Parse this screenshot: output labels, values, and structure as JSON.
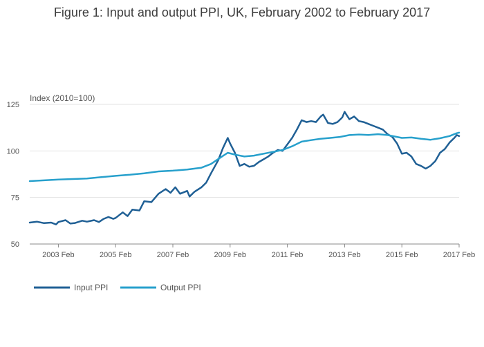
{
  "chart_data": {
    "type": "line",
    "title": "Figure 1: Input and output PPI, UK, February 2002 to February 2017",
    "ylabel": "Index (2010=100)",
    "xlabel": "",
    "ylim": [
      50,
      125
    ],
    "yticks": [
      50,
      75,
      100,
      125
    ],
    "xlim": [
      "2002-02",
      "2017-02"
    ],
    "xticks": [
      {
        "date": "2003-02",
        "label": "2003 Feb"
      },
      {
        "date": "2005-02",
        "label": "2005 Feb"
      },
      {
        "date": "2007-02",
        "label": "2007 Feb"
      },
      {
        "date": "2009-02",
        "label": "2009 Feb"
      },
      {
        "date": "2011-02",
        "label": "2011 Feb"
      },
      {
        "date": "2013-02",
        "label": "2013 Feb"
      },
      {
        "date": "2015-02",
        "label": "2015 Feb"
      },
      {
        "date": "2017-02",
        "label": "2017 Feb"
      }
    ],
    "grid": "horizontal",
    "legend_position": "bottom-left",
    "series": [
      {
        "name": "Input PPI",
        "color": "#206095",
        "points": [
          [
            "2002-02",
            61.5
          ],
          [
            "2002-05",
            62.0
          ],
          [
            "2002-08",
            61.2
          ],
          [
            "2002-11",
            61.5
          ],
          [
            "2003-01",
            60.5
          ],
          [
            "2003-02",
            61.8
          ],
          [
            "2003-05",
            62.8
          ],
          [
            "2003-07",
            61.0
          ],
          [
            "2003-09",
            61.3
          ],
          [
            "2003-12",
            62.5
          ],
          [
            "2004-02",
            62.0
          ],
          [
            "2004-05",
            62.8
          ],
          [
            "2004-07",
            61.8
          ],
          [
            "2004-09",
            63.5
          ],
          [
            "2004-11",
            64.5
          ],
          [
            "2005-01",
            63.5
          ],
          [
            "2005-02",
            64.0
          ],
          [
            "2005-05",
            67.0
          ],
          [
            "2005-07",
            65.0
          ],
          [
            "2005-09",
            68.5
          ],
          [
            "2005-12",
            68.0
          ],
          [
            "2006-02",
            73.0
          ],
          [
            "2006-05",
            72.5
          ],
          [
            "2006-08",
            77.0
          ],
          [
            "2006-11",
            79.5
          ],
          [
            "2007-01",
            77.5
          ],
          [
            "2007-03",
            80.5
          ],
          [
            "2007-05",
            77.0
          ],
          [
            "2007-08",
            78.5
          ],
          [
            "2007-09",
            75.5
          ],
          [
            "2007-11",
            78.0
          ],
          [
            "2008-02",
            80.5
          ],
          [
            "2008-04",
            83.0
          ],
          [
            "2008-06",
            88.0
          ],
          [
            "2008-09",
            95.0
          ],
          [
            "2008-11",
            101.5
          ],
          [
            "2009-01",
            107.0
          ],
          [
            "2009-02",
            104.0
          ],
          [
            "2009-04",
            99.0
          ],
          [
            "2009-06",
            92.0
          ],
          [
            "2009-08",
            93.0
          ],
          [
            "2009-10",
            91.5
          ],
          [
            "2009-12",
            92.0
          ],
          [
            "2010-02",
            94.0
          ],
          [
            "2010-04",
            95.5
          ],
          [
            "2010-06",
            97.0
          ],
          [
            "2010-08",
            99.0
          ],
          [
            "2010-10",
            100.5
          ],
          [
            "2010-12",
            100.0
          ],
          [
            "2011-02",
            103.5
          ],
          [
            "2011-04",
            107.0
          ],
          [
            "2011-06",
            111.5
          ],
          [
            "2011-08",
            116.5
          ],
          [
            "2011-10",
            115.5
          ],
          [
            "2011-12",
            116.0
          ],
          [
            "2012-02",
            115.5
          ],
          [
            "2012-04",
            118.5
          ],
          [
            "2012-05",
            119.5
          ],
          [
            "2012-07",
            115.0
          ],
          [
            "2012-09",
            114.5
          ],
          [
            "2012-11",
            115.5
          ],
          [
            "2013-01",
            118.0
          ],
          [
            "2013-02",
            121.0
          ],
          [
            "2013-04",
            117.0
          ],
          [
            "2013-06",
            118.5
          ],
          [
            "2013-08",
            116.0
          ],
          [
            "2013-10",
            115.5
          ],
          [
            "2013-12",
            114.5
          ],
          [
            "2014-02",
            113.5
          ],
          [
            "2014-04",
            112.5
          ],
          [
            "2014-06",
            111.5
          ],
          [
            "2014-08",
            109.0
          ],
          [
            "2014-10",
            107.5
          ],
          [
            "2014-12",
            104.0
          ],
          [
            "2015-02",
            98.5
          ],
          [
            "2015-04",
            99.0
          ],
          [
            "2015-06",
            97.0
          ],
          [
            "2015-08",
            93.0
          ],
          [
            "2015-10",
            92.0
          ],
          [
            "2015-12",
            90.5
          ],
          [
            "2016-02",
            92.0
          ],
          [
            "2016-04",
            94.5
          ],
          [
            "2016-06",
            99.0
          ],
          [
            "2016-08",
            101.0
          ],
          [
            "2016-10",
            104.5
          ],
          [
            "2016-12",
            107.0
          ],
          [
            "2017-01",
            108.5
          ],
          [
            "2017-02",
            108.0
          ]
        ]
      },
      {
        "name": "Output PPI",
        "color": "#27a0cc",
        "points": [
          [
            "2002-02",
            83.8
          ],
          [
            "2002-08",
            84.2
          ],
          [
            "2003-02",
            84.6
          ],
          [
            "2003-08",
            84.9
          ],
          [
            "2004-02",
            85.2
          ],
          [
            "2004-08",
            85.9
          ],
          [
            "2005-02",
            86.6
          ],
          [
            "2005-08",
            87.2
          ],
          [
            "2006-02",
            88.0
          ],
          [
            "2006-08",
            89.0
          ],
          [
            "2007-02",
            89.4
          ],
          [
            "2007-08",
            90.0
          ],
          [
            "2008-02",
            91.0
          ],
          [
            "2008-06",
            93.0
          ],
          [
            "2008-10",
            96.5
          ],
          [
            "2009-01",
            99.0
          ],
          [
            "2009-04",
            98.0
          ],
          [
            "2009-08",
            97.0
          ],
          [
            "2009-12",
            97.5
          ],
          [
            "2010-04",
            98.5
          ],
          [
            "2010-08",
            99.5
          ],
          [
            "2010-12",
            100.5
          ],
          [
            "2011-04",
            102.5
          ],
          [
            "2011-08",
            105.0
          ],
          [
            "2011-12",
            105.8
          ],
          [
            "2012-04",
            106.5
          ],
          [
            "2012-08",
            107.0
          ],
          [
            "2012-12",
            107.5
          ],
          [
            "2013-04",
            108.5
          ],
          [
            "2013-08",
            108.8
          ],
          [
            "2013-12",
            108.6
          ],
          [
            "2014-04",
            109.0
          ],
          [
            "2014-08",
            108.5
          ],
          [
            "2014-12",
            107.5
          ],
          [
            "2015-02",
            107.0
          ],
          [
            "2015-06",
            107.2
          ],
          [
            "2015-10",
            106.5
          ],
          [
            "2016-02",
            106.0
          ],
          [
            "2016-06",
            106.8
          ],
          [
            "2016-10",
            108.0
          ],
          [
            "2017-01",
            109.5
          ],
          [
            "2017-02",
            109.8
          ]
        ]
      }
    ]
  }
}
